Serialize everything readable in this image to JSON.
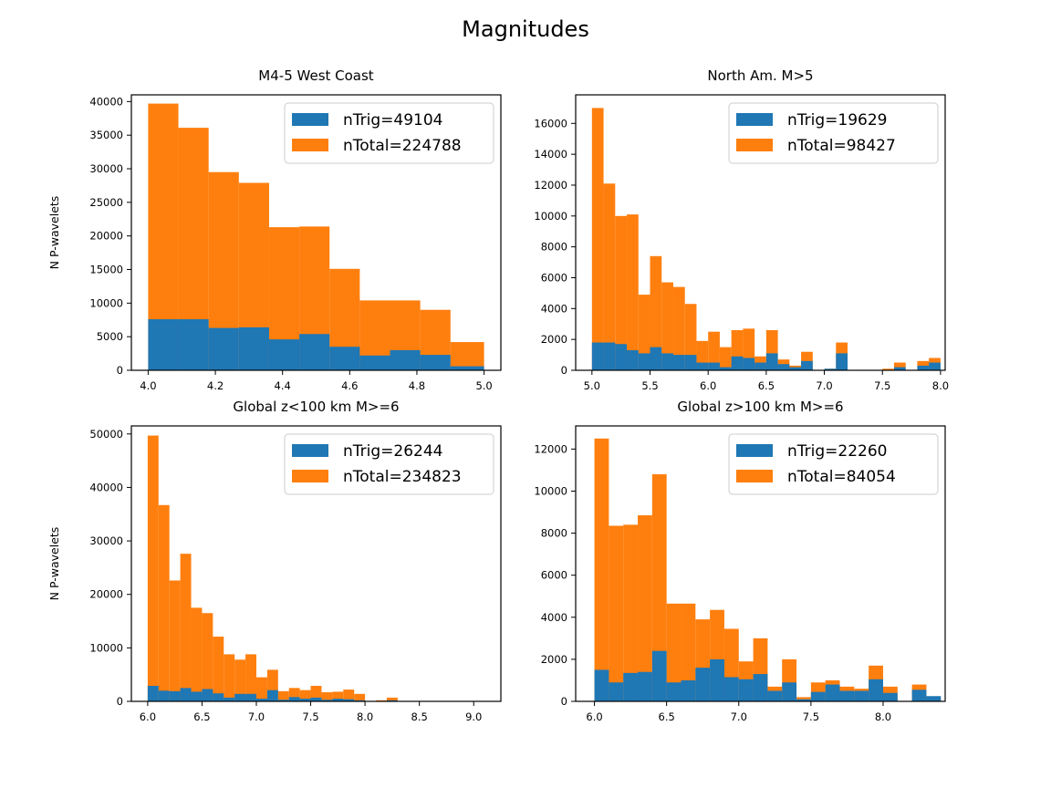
{
  "figure": {
    "title": "Magnitudes",
    "colors": {
      "trig": "#1f77b4",
      "total": "#ff7f0e"
    }
  },
  "chart_data": [
    {
      "type": "bar",
      "title": "M4-5 West Coast",
      "xlabel": "",
      "ylabel": "N P-wavelets",
      "xlim": [
        3.95,
        5.05
      ],
      "ylim": [
        0,
        41000
      ],
      "xticks": [
        4.0,
        4.2,
        4.4,
        4.6,
        4.8,
        5.0
      ],
      "xtick_labels": [
        "4.0",
        "4.2",
        "4.4",
        "4.6",
        "4.8",
        "5.0"
      ],
      "yticks": [
        0,
        5000,
        10000,
        15000,
        20000,
        25000,
        30000,
        35000,
        40000
      ],
      "legend": "top-right",
      "bin_edges": [
        4.0,
        4.09,
        4.18,
        4.27,
        4.36,
        4.45,
        4.54,
        4.63,
        4.72,
        4.81,
        4.9,
        5.0
      ],
      "series": [
        {
          "name": "nTotal=224788",
          "values": [
            39700,
            36100,
            29500,
            27900,
            21300,
            21400,
            15100,
            10400,
            10400,
            9000,
            4200
          ]
        },
        {
          "name": "nTrig=49104",
          "values": [
            7600,
            7600,
            6300,
            6400,
            4600,
            5400,
            3500,
            2200,
            3000,
            2300,
            600
          ]
        }
      ]
    },
    {
      "type": "bar",
      "title": "North Am. M>5",
      "xlabel": "",
      "ylabel": "",
      "xlim": [
        4.86,
        8.04
      ],
      "ylim": [
        0,
        17850
      ],
      "xticks": [
        5.0,
        5.5,
        6.0,
        6.5,
        7.0,
        7.5,
        8.0
      ],
      "xtick_labels": [
        "5.0",
        "5.5",
        "6.0",
        "6.5",
        "7.0",
        "7.5",
        "8.0"
      ],
      "yticks": [
        0,
        2000,
        4000,
        6000,
        8000,
        10000,
        12000,
        14000,
        16000
      ],
      "legend": "top-right",
      "bin_edges": [
        5.0,
        5.1,
        5.2,
        5.3,
        5.4,
        5.5,
        5.6,
        5.7,
        5.8,
        5.9,
        6.0,
        6.1,
        6.2,
        6.3,
        6.4,
        6.5,
        6.6,
        6.7,
        6.8,
        6.9,
        7.0,
        7.1,
        7.2,
        7.3,
        7.4,
        7.5,
        7.6,
        7.7,
        7.8,
        7.9
      ],
      "series": [
        {
          "name": "nTotal=98427",
          "values": [
            17000,
            12100,
            10000,
            10100,
            4900,
            7400,
            5700,
            5400,
            4300,
            1900,
            2500,
            1500,
            2600,
            2700,
            900,
            2600,
            700,
            300,
            1200,
            0,
            100,
            1800,
            0,
            0,
            0,
            100,
            500,
            0,
            600,
            800
          ]
        },
        {
          "name": "nTrig=19629",
          "values": [
            1800,
            1800,
            1700,
            1300,
            1100,
            1500,
            1100,
            1000,
            1000,
            500,
            500,
            200,
            900,
            800,
            500,
            1100,
            400,
            200,
            600,
            0,
            100,
            1100,
            0,
            0,
            0,
            0,
            200,
            0,
            300,
            500
          ]
        }
      ]
    },
    {
      "type": "bar",
      "title": "Global z<100 km M>=6",
      "xlabel": "",
      "ylabel": "N P-wavelets",
      "xlim": [
        5.85,
        9.25
      ],
      "ylim": [
        0,
        51500
      ],
      "xticks": [
        6.0,
        6.5,
        7.0,
        7.5,
        8.0,
        8.5,
        9.0
      ],
      "xtick_labels": [
        "6.0",
        "6.5",
        "7.0",
        "7.5",
        "8.0",
        "8.5",
        "9.0"
      ],
      "yticks": [
        0,
        10000,
        20000,
        30000,
        40000,
        50000
      ],
      "legend": "top-right",
      "bin_edges": [
        6.0,
        6.1,
        6.2,
        6.3,
        6.4,
        6.5,
        6.6,
        6.7,
        6.8,
        6.9,
        7.0,
        7.1,
        7.2,
        7.3,
        7.4,
        7.5,
        7.6,
        7.7,
        7.8,
        7.9,
        8.0,
        8.1,
        8.2,
        8.3,
        8.4,
        8.5,
        8.6,
        8.7,
        8.8,
        8.9,
        9.0,
        9.1
      ],
      "series": [
        {
          "name": "nTotal=234823",
          "values": [
            49700,
            36700,
            22600,
            27600,
            17500,
            16500,
            12100,
            8800,
            7800,
            8800,
            4500,
            5900,
            1900,
            2500,
            2100,
            2900,
            1700,
            1800,
            2200,
            1400,
            0,
            200,
            700,
            0,
            0,
            0,
            0,
            0,
            0,
            0,
            0
          ]
        },
        {
          "name": "nTrig=26244",
          "values": [
            2900,
            2000,
            1900,
            2500,
            1800,
            2300,
            1500,
            700,
            1400,
            1400,
            500,
            2100,
            300,
            800,
            500,
            700,
            300,
            500,
            400,
            200,
            0,
            0,
            200,
            0,
            0,
            0,
            0,
            0,
            0,
            0,
            0
          ]
        }
      ]
    },
    {
      "type": "bar",
      "title": "Global z>100 km M>=6",
      "xlabel": "",
      "ylabel": "",
      "xlim": [
        5.87,
        8.43
      ],
      "ylim": [
        0,
        13100
      ],
      "xticks": [
        6.0,
        6.5,
        7.0,
        7.5,
        8.0
      ],
      "xtick_labels": [
        "6.0",
        "6.5",
        "7.0",
        "7.5",
        "8.0"
      ],
      "yticks": [
        0,
        2000,
        4000,
        6000,
        8000,
        10000,
        12000
      ],
      "legend": "top-right",
      "bin_edges": [
        6.0,
        6.1,
        6.2,
        6.3,
        6.4,
        6.5,
        6.6,
        6.7,
        6.8,
        6.9,
        7.0,
        7.1,
        7.2,
        7.3,
        7.4,
        7.5,
        7.6,
        7.7,
        7.8,
        7.9,
        8.0,
        8.1,
        8.2,
        8.3
      ],
      "series": [
        {
          "name": "nTotal=84054",
          "values": [
            12500,
            8350,
            8400,
            8850,
            10800,
            4650,
            4650,
            3900,
            4350,
            3450,
            1900,
            3000,
            700,
            2000,
            200,
            900,
            1000,
            700,
            600,
            1700,
            700,
            0,
            800,
            200
          ]
        },
        {
          "name": "nTrig=22260",
          "values": [
            1500,
            900,
            1350,
            1400,
            2400,
            900,
            1000,
            1600,
            2000,
            1150,
            1050,
            1300,
            500,
            900,
            100,
            450,
            800,
            500,
            500,
            1050,
            400,
            0,
            550,
            250
          ]
        }
      ]
    }
  ]
}
